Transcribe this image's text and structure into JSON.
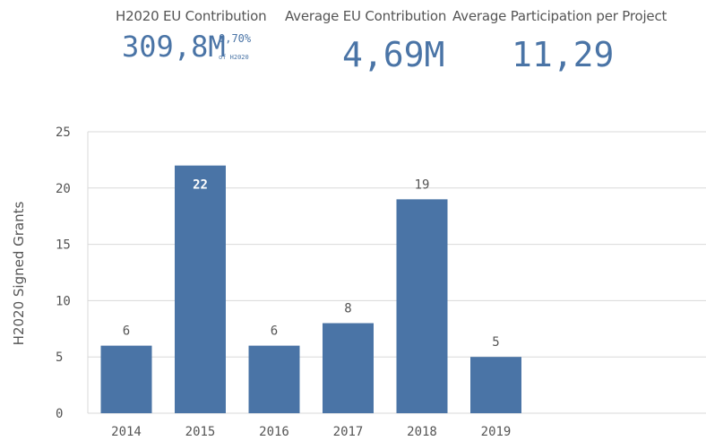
{
  "kpis": {
    "eu_contribution": {
      "label": "H2020 EU Contribution",
      "value": "309,8M",
      "share": "0,70%",
      "share_note": "of H2020"
    },
    "average_eu_contribution": {
      "label": "Average EU Contribution",
      "value": "4,69M"
    },
    "average_participation": {
      "label": "Average Participation per Project",
      "value": "11,29"
    }
  },
  "colors": {
    "bar": "#4a74a6",
    "kpi_value": "#4a74a6",
    "gridline": "#d9d9d9",
    "text": "#555555"
  },
  "chart_data": {
    "type": "bar",
    "categories": [
      "2014",
      "2015",
      "2016",
      "2017",
      "2018",
      "2019"
    ],
    "values": [
      6,
      22,
      6,
      8,
      19,
      5
    ],
    "data_labels": [
      "6",
      "22",
      "6",
      "8",
      "19",
      "5"
    ],
    "yticks": [
      "0",
      "5",
      "10",
      "15",
      "20",
      "25"
    ],
    "ylabel": "H2020 Signed Grants",
    "xlabel": "",
    "ylim": [
      0,
      25
    ],
    "grid": true,
    "legend": "none"
  }
}
